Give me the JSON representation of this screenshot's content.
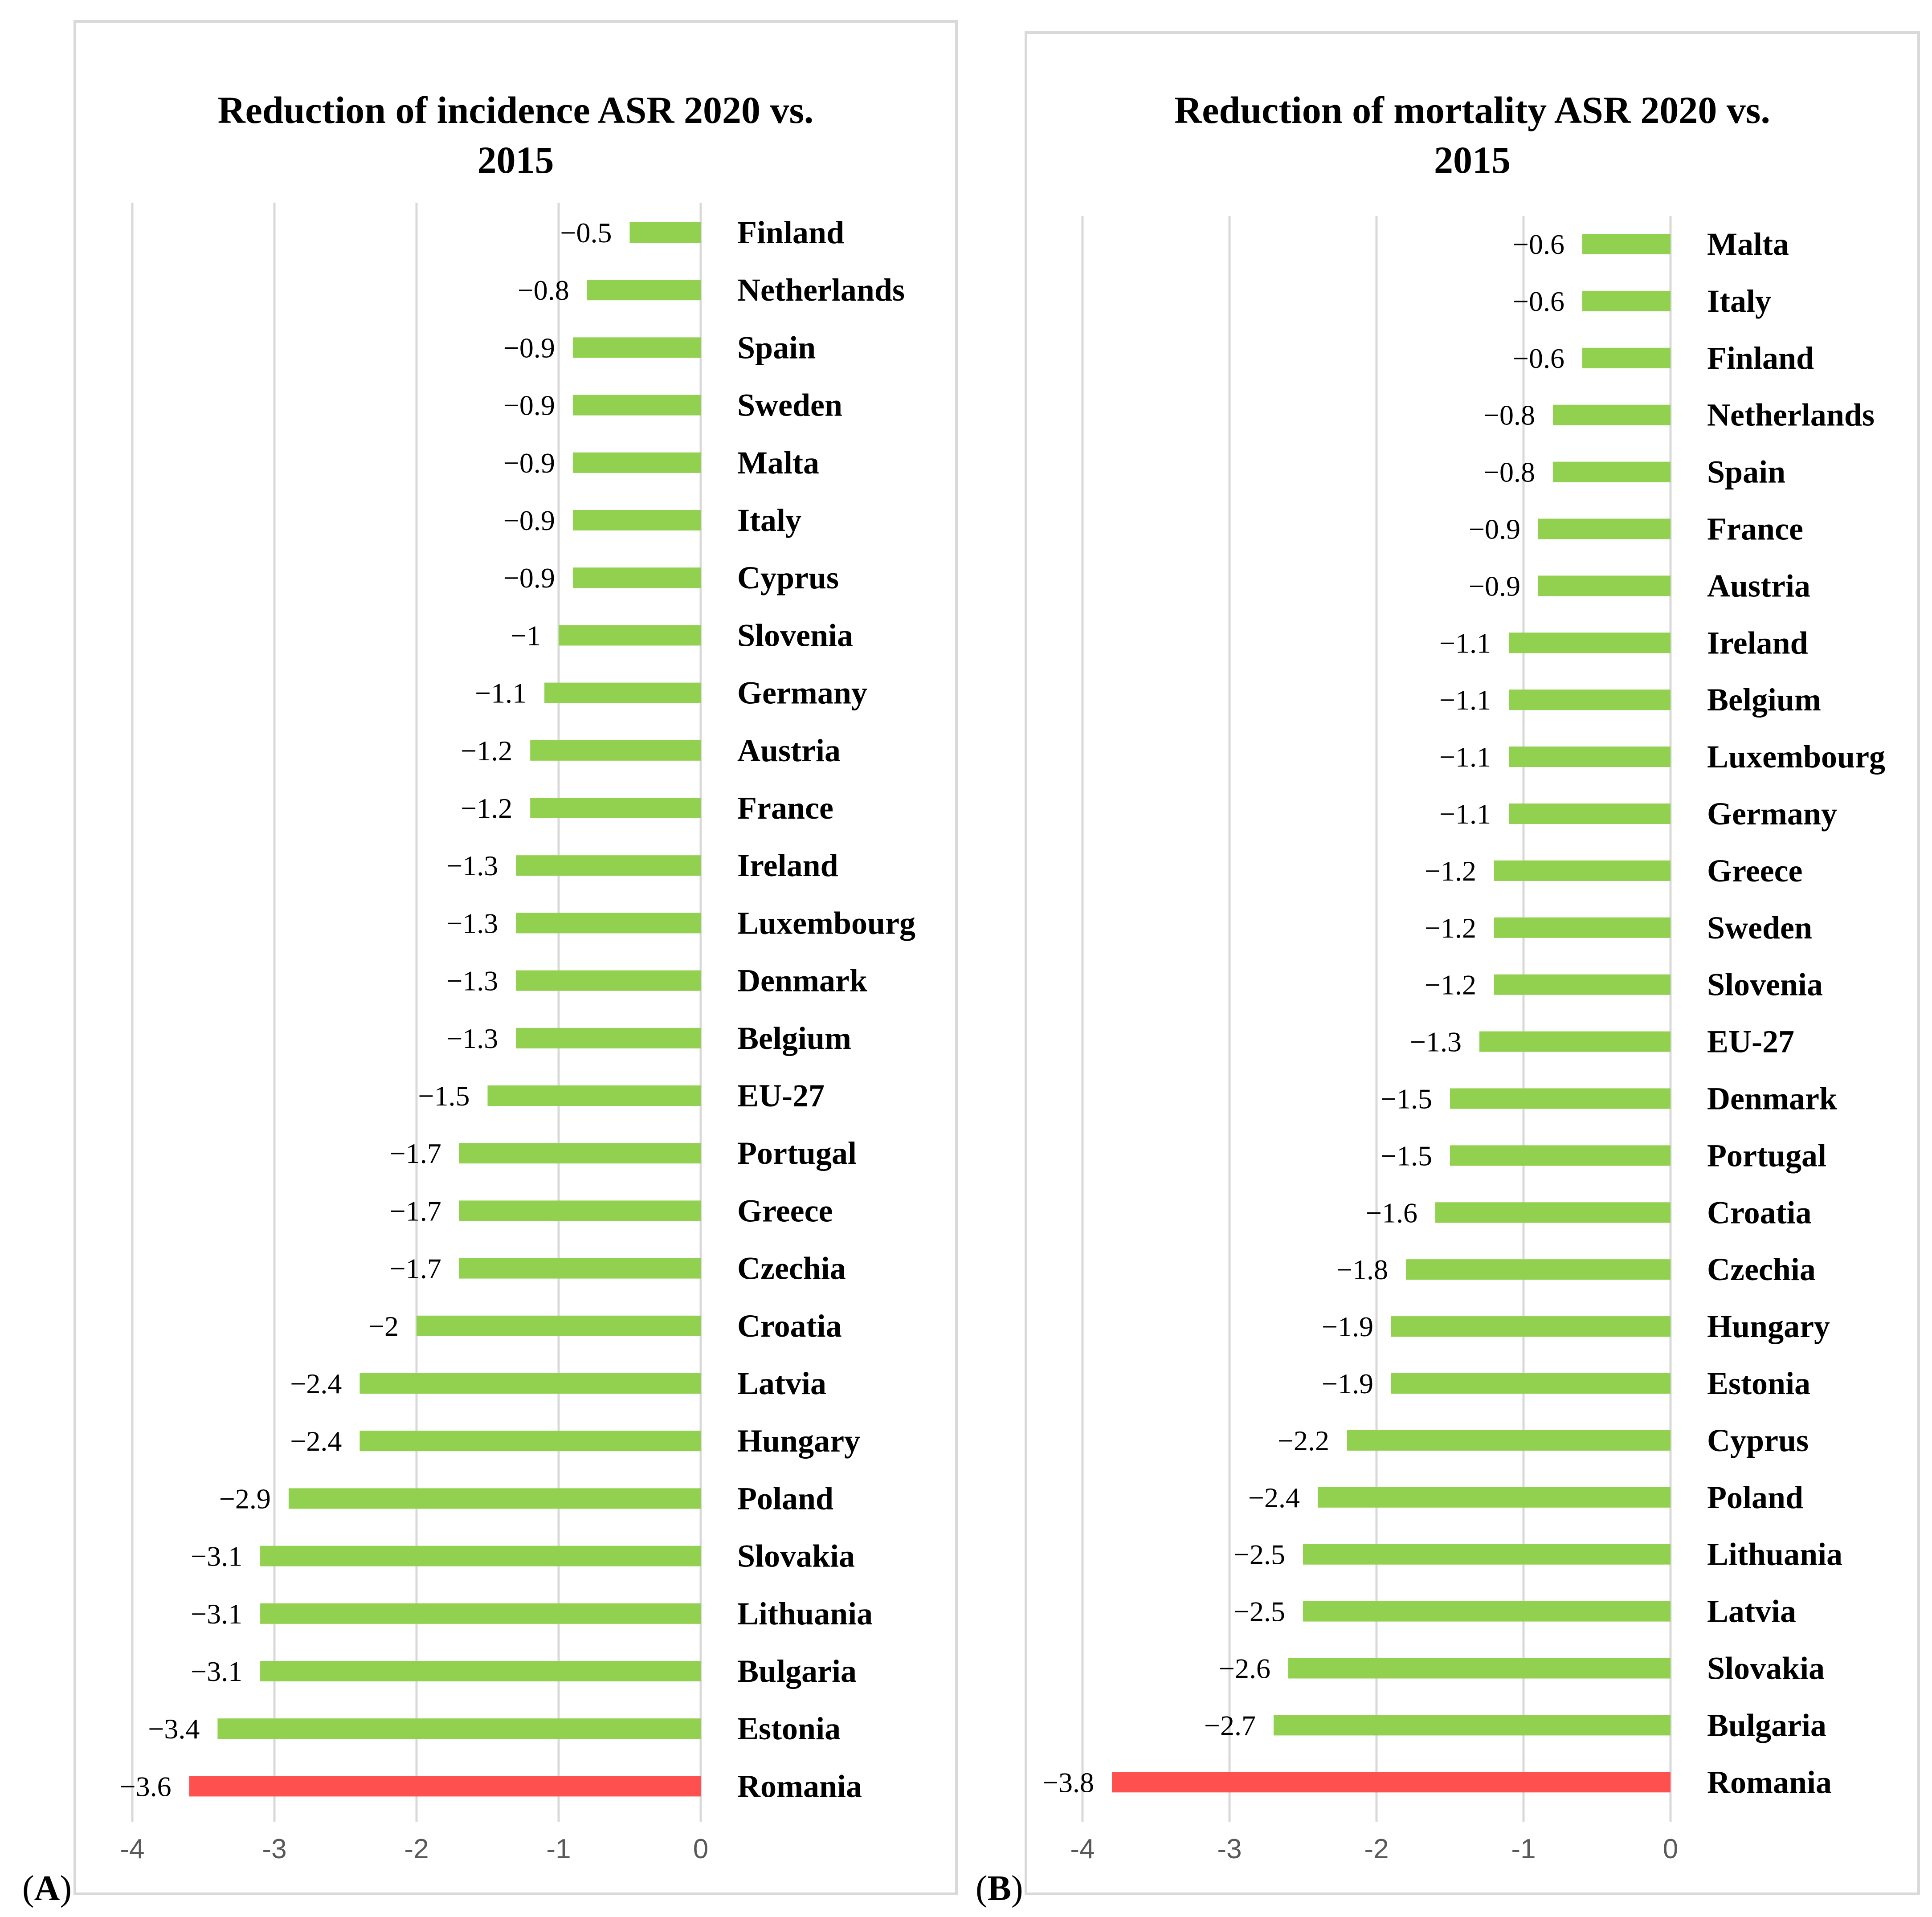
{
  "panels": [
    {
      "tag_letter": "A",
      "title_line1": "Reduction of incidence ASR 2020 vs.",
      "title_line2": "2015",
      "highlight_color": "#ff5050",
      "bar_color": "#92d050"
    },
    {
      "tag_letter": "B",
      "title_line1": "Reduction of mortality ASR 2020 vs.",
      "title_line2": "2015",
      "highlight_color": "#ff5050",
      "bar_color": "#92d050"
    }
  ],
  "chart_data": [
    {
      "type": "bar",
      "orientation": "horizontal",
      "title": "Reduction of incidence ASR 2020 vs. 2015",
      "categories": [
        "Finland",
        "Netherlands",
        "Spain",
        "Sweden",
        "Malta",
        "Italy",
        "Cyprus",
        "Slovenia",
        "Germany",
        "Austria",
        "France",
        "Ireland",
        "Luxembourg",
        "Denmark",
        "Belgium",
        "EU-27",
        "Portugal",
        "Greece",
        "Czechia",
        "Croatia",
        "Latvia",
        "Hungary",
        "Poland",
        "Slovakia",
        "Lithuania",
        "Bulgaria",
        "Estonia",
        "Romania"
      ],
      "values": [
        -0.5,
        -0.8,
        -0.9,
        -0.9,
        -0.9,
        -0.9,
        -0.9,
        -1,
        -1.1,
        -1.2,
        -1.2,
        -1.3,
        -1.3,
        -1.3,
        -1.3,
        -1.5,
        -1.7,
        -1.7,
        -1.7,
        -2,
        -2.4,
        -2.4,
        -2.9,
        -3.1,
        -3.1,
        -3.1,
        -3.4,
        -3.6
      ],
      "value_labels": [
        "−0.5",
        "−0.8",
        "−0.9",
        "−0.9",
        "−0.9",
        "−0.9",
        "−0.9",
        "−1",
        "−1.1",
        "−1.2",
        "−1.2",
        "−1.3",
        "−1.3",
        "−1.3",
        "−1.3",
        "−1.5",
        "−1.7",
        "−1.7",
        "−1.7",
        "−2",
        "−2.4",
        "−2.4",
        "−2.9",
        "−3.1",
        "−3.1",
        "−3.1",
        "−3.4",
        "−3.6"
      ],
      "highlight": "Romania",
      "xlim": [
        -4,
        0
      ],
      "xticks": [
        -4,
        -3,
        -2,
        -1,
        0
      ],
      "xtick_labels": [
        "-4",
        "-3",
        "-2",
        "-1",
        "0"
      ],
      "grid": true,
      "legend": "none"
    },
    {
      "type": "bar",
      "orientation": "horizontal",
      "title": "Reduction of mortality ASR 2020 vs. 2015",
      "categories": [
        "Malta",
        "Italy",
        "Finland",
        "Netherlands",
        "Spain",
        "France",
        "Austria",
        "Ireland",
        "Belgium",
        "Luxembourg",
        "Germany",
        "Greece",
        "Sweden",
        "Slovenia",
        "EU-27",
        "Denmark",
        "Portugal",
        "Croatia",
        "Czechia",
        "Hungary",
        "Estonia",
        "Cyprus",
        "Poland",
        "Lithuania",
        "Latvia",
        "Slovakia",
        "Bulgaria",
        "Romania"
      ],
      "values": [
        -0.6,
        -0.6,
        -0.6,
        -0.8,
        -0.8,
        -0.9,
        -0.9,
        -1.1,
        -1.1,
        -1.1,
        -1.1,
        -1.2,
        -1.2,
        -1.2,
        -1.3,
        -1.5,
        -1.5,
        -1.6,
        -1.8,
        -1.9,
        -1.9,
        -2.2,
        -2.4,
        -2.5,
        -2.5,
        -2.6,
        -2.7,
        -3.8
      ],
      "value_labels": [
        "−0.6",
        "−0.6",
        "−0.6",
        "−0.8",
        "−0.8",
        "−0.9",
        "−0.9",
        "−1.1",
        "−1.1",
        "−1.1",
        "−1.1",
        "−1.2",
        "−1.2",
        "−1.2",
        "−1.3",
        "−1.5",
        "−1.5",
        "−1.6",
        "−1.8",
        "−1.9",
        "−1.9",
        "−2.2",
        "−2.4",
        "−2.5",
        "−2.5",
        "−2.6",
        "−2.7",
        "−3.8"
      ],
      "highlight": "Romania",
      "xlim": [
        -4,
        0
      ],
      "xticks": [
        -4,
        -3,
        -2,
        -1,
        0
      ],
      "xtick_labels": [
        "-4",
        "-3",
        "-2",
        "-1",
        "0"
      ],
      "grid": true,
      "legend": "none"
    }
  ]
}
